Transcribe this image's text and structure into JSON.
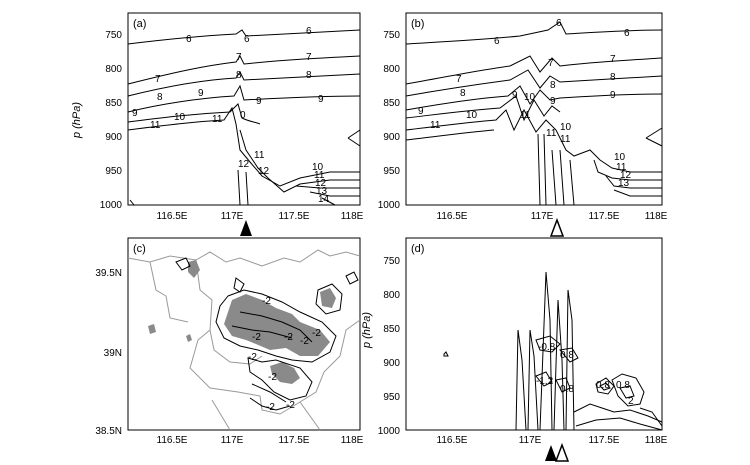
{
  "figure": {
    "panels": [
      {
        "id": "a",
        "label": "(a)",
        "type": "pressure-longitude isentrope section",
        "y_axis_label": "p (hPa)",
        "y_ticks": [
          "750",
          "800",
          "850",
          "900",
          "950",
          "1000"
        ],
        "x_ticks": [
          "116.5E",
          "117E",
          "117.5E",
          "118E"
        ],
        "contour_labels": [
          "6",
          "6",
          "6",
          "7",
          "7",
          "7",
          "8",
          "8",
          "8",
          "9",
          "9",
          "9",
          "9",
          "10",
          "11",
          "11",
          "0",
          "11",
          "12",
          "12",
          "10",
          "11",
          "12",
          "13",
          "14"
        ],
        "marker": "filled"
      },
      {
        "id": "b",
        "label": "(b)",
        "type": "pressure-longitude isentrope section",
        "y_ticks": [
          "750",
          "800",
          "850",
          "900",
          "950",
          "1000"
        ],
        "x_ticks": [
          "116.5E",
          "117E",
          "117.5E",
          "118E"
        ],
        "contour_labels": [
          "6",
          "6",
          "6",
          "7",
          "7",
          "7",
          "8",
          "8",
          "8",
          "9",
          "9",
          "9",
          "9",
          "10",
          "10",
          "11",
          "11",
          "11",
          "11",
          "10",
          "10",
          "11",
          "12",
          "13"
        ],
        "marker": "open"
      },
      {
        "id": "c",
        "label": "(c)",
        "type": "lat-lon map",
        "y_ticks": [
          "39.5N",
          "39N",
          "38.5N"
        ],
        "x_ticks": [
          "116.5E",
          "117E",
          "117.5E",
          "118E"
        ],
        "contour_labels": [
          "-2",
          "-2",
          "-2",
          "-2",
          "-2",
          "-2",
          "-2",
          "-2",
          "-2"
        ]
      },
      {
        "id": "d",
        "label": "(d)",
        "type": "pressure-longitude section",
        "y_axis_label": "p (hPa)",
        "y_ticks": [
          "750",
          "800",
          "850",
          "900",
          "950",
          "1000"
        ],
        "x_ticks": [
          "116.5E",
          "117E",
          "117.5E",
          "118E"
        ],
        "contour_labels": [
          "-0.8",
          "0.8",
          "-1.2",
          "0.8",
          "0.8",
          "0.8",
          "2"
        ],
        "marker": "both"
      }
    ]
  },
  "colors": {
    "line": "#000000",
    "shade": "#8a8a8a",
    "border": "#999999"
  }
}
